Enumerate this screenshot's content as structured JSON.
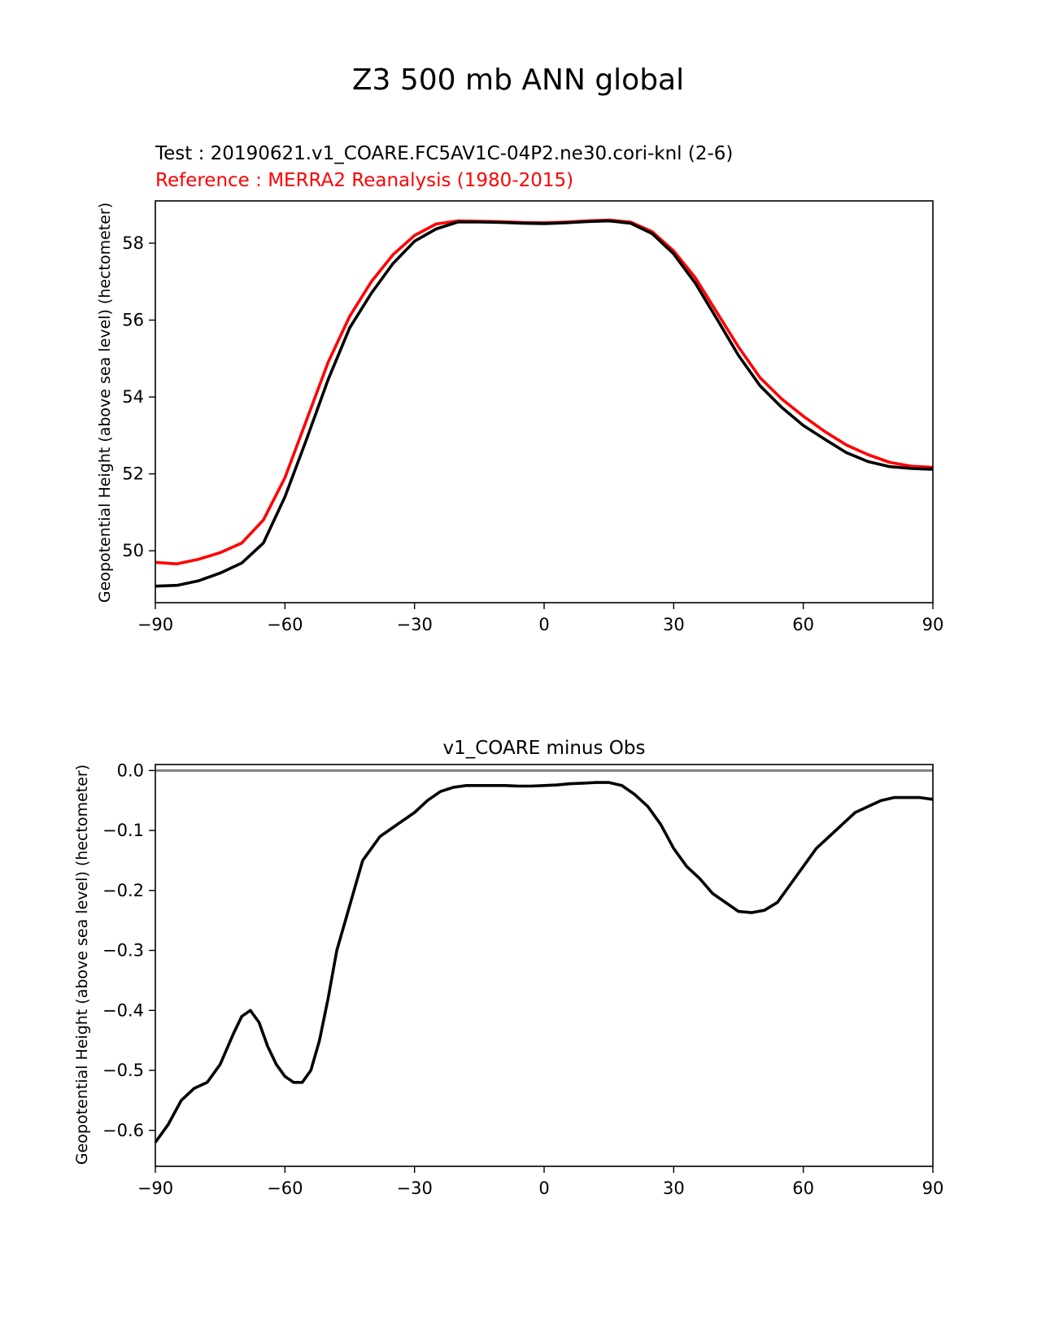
{
  "suptitle": "Z3 500 mb ANN global",
  "chart_data": [
    {
      "type": "line",
      "test_label": "Test : 20190621.v1_COARE.FC5AV1C-04P2.ne30.cori-knl (2-6)",
      "reference_label": "Reference : MERRA2 Reanalysis (1980-2015)",
      "xlabel": "",
      "ylabel": "Geopotential Height (above sea level) (hectometer)",
      "xlim": [
        -90,
        90
      ],
      "ylim": [
        48.65,
        59.1
      ],
      "xticks": [
        -90,
        -60,
        -30,
        0,
        30,
        60,
        90
      ],
      "yticks": [
        50,
        52,
        54,
        56,
        58
      ],
      "x": [
        -90,
        -85,
        -80,
        -75,
        -70,
        -65,
        -60,
        -55,
        -50,
        -45,
        -40,
        -35,
        -30,
        -25,
        -20,
        -15,
        -10,
        -5,
        0,
        5,
        10,
        15,
        20,
        25,
        30,
        35,
        40,
        45,
        50,
        55,
        60,
        65,
        70,
        75,
        80,
        85,
        90
      ],
      "series": [
        {
          "name": "Reference",
          "color": "#ff0000",
          "values": [
            49.7,
            49.66,
            49.78,
            49.95,
            50.2,
            50.8,
            51.9,
            53.4,
            54.9,
            56.1,
            57.0,
            57.7,
            58.2,
            58.5,
            58.58,
            58.57,
            58.56,
            58.54,
            58.53,
            58.55,
            58.58,
            58.6,
            58.55,
            58.3,
            57.8,
            57.1,
            56.2,
            55.3,
            54.5,
            53.95,
            53.5,
            53.1,
            52.75,
            52.5,
            52.3,
            52.2,
            52.17
          ]
        },
        {
          "name": "Test",
          "color": "#000000",
          "values": [
            49.08,
            49.1,
            49.22,
            49.42,
            49.68,
            50.2,
            51.4,
            52.9,
            54.45,
            55.8,
            56.7,
            57.47,
            58.05,
            58.37,
            58.55,
            58.55,
            58.54,
            58.52,
            58.51,
            58.53,
            58.56,
            58.58,
            58.52,
            58.25,
            57.72,
            56.96,
            56.03,
            55.08,
            54.29,
            53.73,
            53.26,
            52.9,
            52.55,
            52.32,
            52.19,
            52.14,
            52.12
          ]
        }
      ]
    },
    {
      "type": "line",
      "title": "v1_COARE minus Obs",
      "xlabel": "",
      "ylabel": "Geopotential Height (above sea level) (hectometer)",
      "xlim": [
        -90,
        90
      ],
      "ylim": [
        -0.66,
        0.01
      ],
      "xticks": [
        -90,
        -60,
        -30,
        0,
        30,
        60,
        90
      ],
      "yticks": [
        0.0,
        -0.1,
        -0.2,
        -0.3,
        -0.4,
        -0.5,
        -0.6
      ],
      "ytick_labels": [
        "0.0",
        "−0.1",
        "−0.2",
        "−0.3",
        "−0.4",
        "−0.5",
        "−0.6"
      ],
      "zero_line_color": "#808080",
      "x": [
        -90,
        -87,
        -84,
        -81,
        -78,
        -75,
        -72,
        -70,
        -68,
        -66,
        -64,
        -62,
        -60,
        -58,
        -56,
        -54,
        -52,
        -50,
        -48,
        -46,
        -44,
        -42,
        -40,
        -38,
        -36,
        -34,
        -32,
        -30,
        -27,
        -24,
        -21,
        -18,
        -15,
        -12,
        -9,
        -6,
        -3,
        0,
        3,
        6,
        9,
        12,
        15,
        18,
        21,
        24,
        27,
        30,
        33,
        36,
        39,
        42,
        45,
        48,
        51,
        54,
        57,
        60,
        63,
        66,
        69,
        72,
        75,
        78,
        81,
        84,
        87,
        90
      ],
      "series": [
        {
          "name": "v1_COARE minus Obs",
          "color": "#000000",
          "values": [
            -0.62,
            -0.59,
            -0.55,
            -0.53,
            -0.52,
            -0.49,
            -0.44,
            -0.41,
            -0.4,
            -0.42,
            -0.46,
            -0.49,
            -0.51,
            -0.52,
            -0.52,
            -0.5,
            -0.45,
            -0.38,
            -0.3,
            -0.25,
            -0.2,
            -0.15,
            -0.13,
            -0.11,
            -0.1,
            -0.09,
            -0.08,
            -0.07,
            -0.05,
            -0.035,
            -0.028,
            -0.025,
            -0.025,
            -0.025,
            -0.025,
            -0.026,
            -0.026,
            -0.025,
            -0.024,
            -0.022,
            -0.021,
            -0.02,
            -0.02,
            -0.025,
            -0.04,
            -0.06,
            -0.09,
            -0.13,
            -0.16,
            -0.18,
            -0.205,
            -0.22,
            -0.235,
            -0.237,
            -0.233,
            -0.22,
            -0.19,
            -0.16,
            -0.13,
            -0.11,
            -0.09,
            -0.07,
            -0.06,
            -0.05,
            -0.045,
            -0.045,
            -0.045,
            -0.048
          ]
        }
      ]
    }
  ]
}
